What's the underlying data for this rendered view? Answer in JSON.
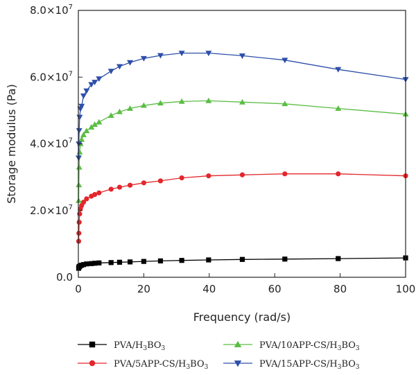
{
  "chart_data": {
    "type": "line",
    "xlabel": "Frequency (rad/s)",
    "ylabel": "Storage modulus (Pa)",
    "xlim": [
      0,
      100
    ],
    "ylim": [
      0,
      80000000
    ],
    "x_ticks": [
      0,
      20,
      40,
      60,
      80,
      100
    ],
    "x_tick_labels": [
      "0",
      "20",
      "40",
      "60",
      "80",
      "100"
    ],
    "y_ticks": [
      0,
      20000000,
      40000000,
      60000000,
      80000000
    ],
    "y_tick_mantissa": [
      "0.0",
      "2.0",
      "4.0",
      "6.0",
      "8.0"
    ],
    "y_tick_exponent_prefix": "×10",
    "y_tick_exponent": "7",
    "grid": false,
    "legend_position": "bottom",
    "x": [
      0.1,
      0.158,
      0.251,
      0.398,
      0.631,
      1,
      1.58,
      2.51,
      3.98,
      5.01,
      6.31,
      10,
      12.6,
      15.8,
      20,
      25.1,
      31.6,
      39.8,
      50.1,
      63.1,
      79.4,
      100
    ],
    "series": [
      {
        "name": "PVA/H3BO3",
        "name_parts": [
          "PVA/H",
          "3",
          "BO",
          "3"
        ],
        "color": "#000000",
        "marker": "square",
        "values": [
          2700000,
          3000000,
          3200000,
          3300000,
          3500000,
          3600000,
          3800000,
          4000000,
          4100000,
          4200000,
          4300000,
          4400000,
          4500000,
          4600000,
          4750000,
          4900000,
          5050000,
          5200000,
          5350000,
          5450000,
          5600000,
          5800000
        ]
      },
      {
        "name": "PVA/5APP-CS/H3BO3",
        "name_parts": [
          "PVA/5APP-CS/H",
          "3",
          "BO",
          "3"
        ],
        "color": "#e3262b",
        "marker": "circle",
        "values": [
          10800000,
          13200000,
          16500000,
          19000000,
          20500000,
          21500000,
          22500000,
          23500000,
          24300000,
          24800000,
          25300000,
          26400000,
          27000000,
          27600000,
          28300000,
          28900000,
          29800000,
          30400000,
          30700000,
          31000000,
          31000000,
          30400000
        ]
      },
      {
        "name": "PVA/10APP-CS/H3BO3",
        "name_parts": [
          "PVA/10APP-CS/H",
          "3",
          "BO",
          "3"
        ],
        "color": "#5bbd44",
        "marker": "triangle-up",
        "values": [
          23000000,
          27700000,
          33000000,
          37500000,
          40000000,
          41300000,
          42700000,
          43900000,
          45000000,
          45800000,
          46500000,
          48500000,
          49600000,
          50600000,
          51500000,
          52200000,
          52700000,
          52900000,
          52500000,
          52000000,
          50600000,
          48900000
        ]
      },
      {
        "name": "PVA/15APP-CS/H3BO3",
        "name_parts": [
          "PVA/15APP-CS/H",
          "3",
          "BO",
          "3"
        ],
        "color": "#2d4fa8",
        "marker": "triangle-down",
        "values": [
          35800000,
          40000000,
          44000000,
          48000000,
          50500000,
          51300000,
          54400000,
          55900000,
          57800000,
          58500000,
          59500000,
          61800000,
          63200000,
          64400000,
          65600000,
          66500000,
          67200000,
          67200000,
          66400000,
          65100000,
          62300000,
          59300000
        ]
      }
    ]
  }
}
